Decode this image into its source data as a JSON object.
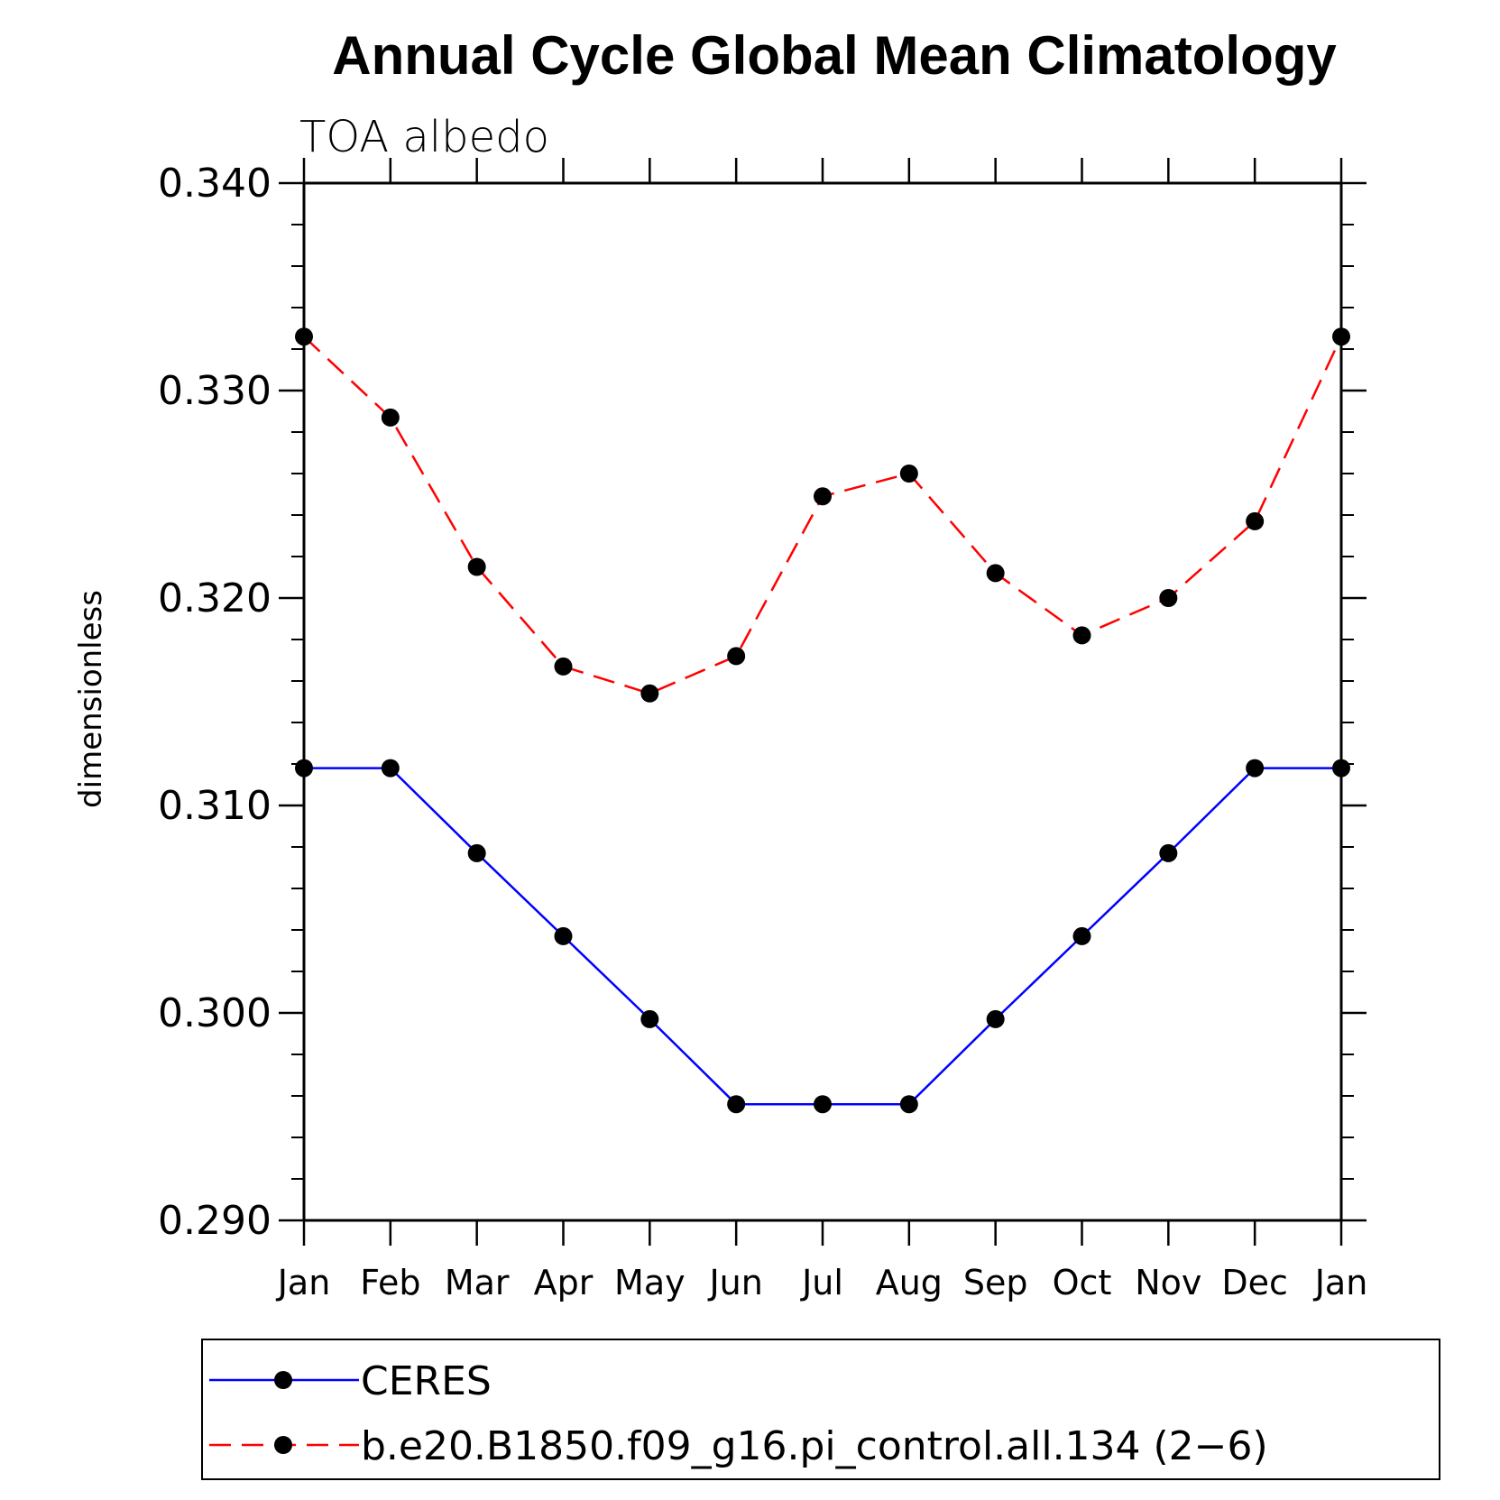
{
  "chart_data": {
    "type": "line",
    "title": "Annual Cycle Global Mean Climatology",
    "subtitle": "TOA albedo",
    "xlabel": "",
    "ylabel": "dimensionless",
    "categories": [
      "Jan",
      "Feb",
      "Mar",
      "Apr",
      "May",
      "Jun",
      "Jul",
      "Aug",
      "Sep",
      "Oct",
      "Nov",
      "Dec",
      "Jan"
    ],
    "ylim": [
      0.29,
      0.34
    ],
    "yticks": [
      "0.290",
      "0.300",
      "0.310",
      "0.320",
      "0.330",
      "0.340"
    ],
    "series": [
      {
        "name": "CERES",
        "color": "#0000ff",
        "dash": "solid",
        "values": [
          0.3118,
          0.3118,
          0.3077,
          0.3037,
          0.2997,
          0.2956,
          0.2956,
          0.2956,
          0.2997,
          0.3037,
          0.3077,
          0.3118,
          0.3118
        ]
      },
      {
        "name": "b.e20.B1850.f09_g16.pi_control.all.134 (2−6)",
        "color": "#ff0000",
        "dash": "dashed",
        "values": [
          0.3326,
          0.3287,
          0.3215,
          0.3167,
          0.3154,
          0.3172,
          0.3249,
          0.326,
          0.3212,
          0.3182,
          0.32,
          0.3237,
          0.3326
        ]
      }
    ],
    "legend_position": "bottom"
  }
}
